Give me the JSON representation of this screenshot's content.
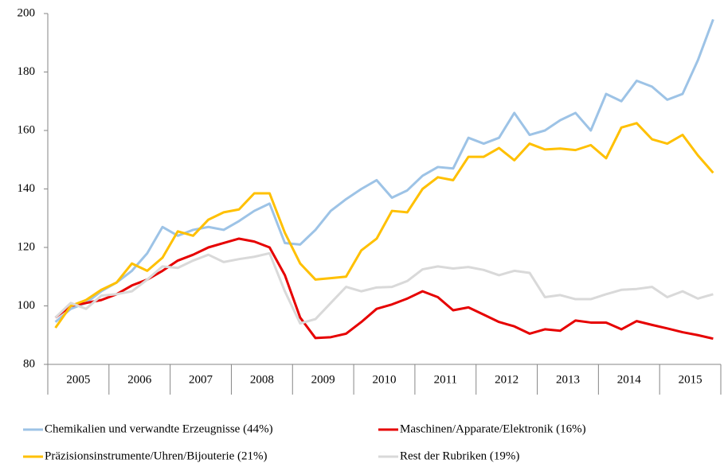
{
  "chart_data": {
    "type": "line",
    "categories": [
      "2005",
      null,
      null,
      null,
      "2006",
      null,
      null,
      null,
      "2007",
      null,
      null,
      null,
      "2008",
      null,
      null,
      null,
      "2009",
      null,
      null,
      null,
      "2010",
      null,
      null,
      null,
      "2011",
      null,
      null,
      null,
      "2012",
      null,
      null,
      null,
      "2013",
      null,
      null,
      null,
      "2014",
      null,
      null,
      null,
      "2015",
      null,
      null,
      null
    ],
    "series": [
      {
        "name": "Chemikalien und verwandte Erzeugnisse (44%)",
        "color": "#9dc3e6",
        "values": [
          94.5,
          99,
          101,
          105,
          108,
          112,
          118,
          127,
          124,
          126,
          127,
          126,
          129,
          132.5,
          135,
          121.5,
          121,
          126,
          132.5,
          136.5,
          140,
          143,
          137,
          139.5,
          144.5,
          147.5,
          147,
          157.5,
          155.5,
          157.5,
          166,
          158.5,
          160,
          163.5,
          166,
          160,
          172.5,
          170,
          177,
          175,
          170.5,
          172.5,
          184,
          198
        ]
      },
      {
        "name": "Maschinen/Apparate/Elektronik (16%)",
        "color": "#e60000",
        "values": [
          96,
          100,
          101,
          102,
          104,
          107,
          109,
          112,
          115.5,
          117.5,
          120,
          121.5,
          123,
          122,
          120,
          110.5,
          96,
          89,
          89.3,
          90.5,
          94.5,
          99,
          100.5,
          102.5,
          105,
          103,
          98.5,
          99.5,
          97,
          94.5,
          93,
          90.5,
          92,
          91.5,
          95,
          94.3,
          94.3,
          92,
          94.8,
          93.5,
          92.3,
          91,
          90,
          88.8
        ]
      },
      {
        "name": "Präzisionsinstrumente/Uhren/Bijouterie (21%)",
        "color": "#ffc000",
        "values": [
          92.5,
          100,
          102,
          105.5,
          108,
          114.5,
          112,
          116.5,
          125.5,
          124,
          129.5,
          132,
          133,
          138.5,
          138.5,
          125,
          114.5,
          109,
          109.5,
          110,
          119,
          123,
          132.5,
          132,
          140,
          144,
          143,
          151,
          151,
          154,
          149.8,
          155.5,
          153.5,
          153.8,
          153.3,
          155,
          150.5,
          161,
          162.5,
          157,
          155.5,
          158.5,
          151.5,
          145.5
        ]
      },
      {
        "name": "Rest der Rubriken (19%)",
        "color": "#d9d9d9",
        "values": [
          96,
          101,
          99,
          103.5,
          104,
          105,
          109,
          113.5,
          113,
          115.5,
          117.5,
          115,
          116,
          116.8,
          118,
          105,
          94,
          95.5,
          101,
          106.5,
          105,
          106.3,
          106.5,
          108.5,
          112.5,
          113.5,
          112.8,
          113.3,
          112.3,
          110.5,
          112,
          111.3,
          103,
          103.7,
          102.3,
          102.3,
          104,
          105.5,
          105.8,
          106.5,
          103,
          105,
          102.5,
          104
        ]
      }
    ],
    "ylim": [
      80,
      200
    ],
    "yticks": [
      80,
      100,
      120,
      140,
      160,
      180,
      200
    ],
    "grid": false
  }
}
